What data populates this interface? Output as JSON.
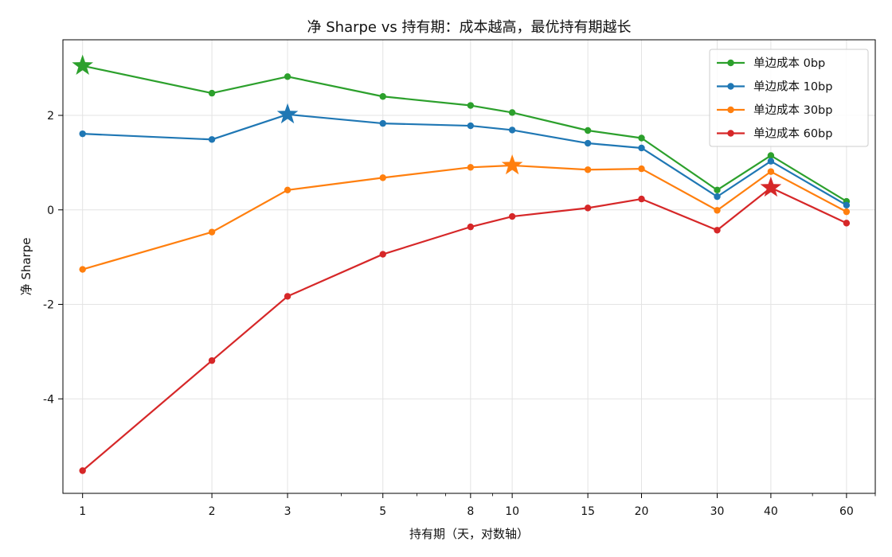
{
  "chart_data": {
    "type": "line",
    "title": "净 Sharpe vs 持有期：成本越高，最优持有期越长",
    "xlabel": "持有期（天，对数轴）",
    "ylabel": "净 Sharpe",
    "x_scale": "log",
    "x": [
      1,
      2,
      3,
      5,
      8,
      10,
      15,
      20,
      30,
      40,
      60
    ],
    "x_tick_labels": [
      "1",
      "2",
      "3",
      "5",
      "8",
      "10",
      "15",
      "20",
      "30",
      "40",
      "60"
    ],
    "xlim": [
      0.9,
      70
    ],
    "y_ticks": [
      2,
      0,
      -2,
      -4
    ],
    "y_tick_labels": [
      "2",
      "0",
      "-2",
      "-4"
    ],
    "ylim": [
      -6.0,
      3.6
    ],
    "grid": true,
    "legend_position": "top-right",
    "series": [
      {
        "name": "单边成本 0bp",
        "color": "#2ca02c",
        "values": [
          3.05,
          2.47,
          2.82,
          2.4,
          2.21,
          2.06,
          1.68,
          1.52,
          0.42,
          1.15,
          0.18
        ],
        "best_x": 1
      },
      {
        "name": "单边成本 10bp",
        "color": "#1f77b4",
        "values": [
          1.61,
          1.49,
          2.02,
          1.83,
          1.78,
          1.69,
          1.41,
          1.31,
          0.28,
          1.03,
          0.1
        ],
        "best_x": 3
      },
      {
        "name": "单边成本 30bp",
        "color": "#ff7f0e",
        "values": [
          -1.26,
          -0.47,
          0.42,
          0.68,
          0.9,
          0.94,
          0.85,
          0.87,
          -0.01,
          0.81,
          -0.04
        ],
        "best_x": 10
      },
      {
        "name": "单边成本 60bp",
        "color": "#d62728",
        "values": [
          -5.52,
          -3.19,
          -1.83,
          -0.94,
          -0.36,
          -0.14,
          0.04,
          0.23,
          -0.43,
          0.47,
          -0.28
        ],
        "best_x": 40
      }
    ]
  }
}
